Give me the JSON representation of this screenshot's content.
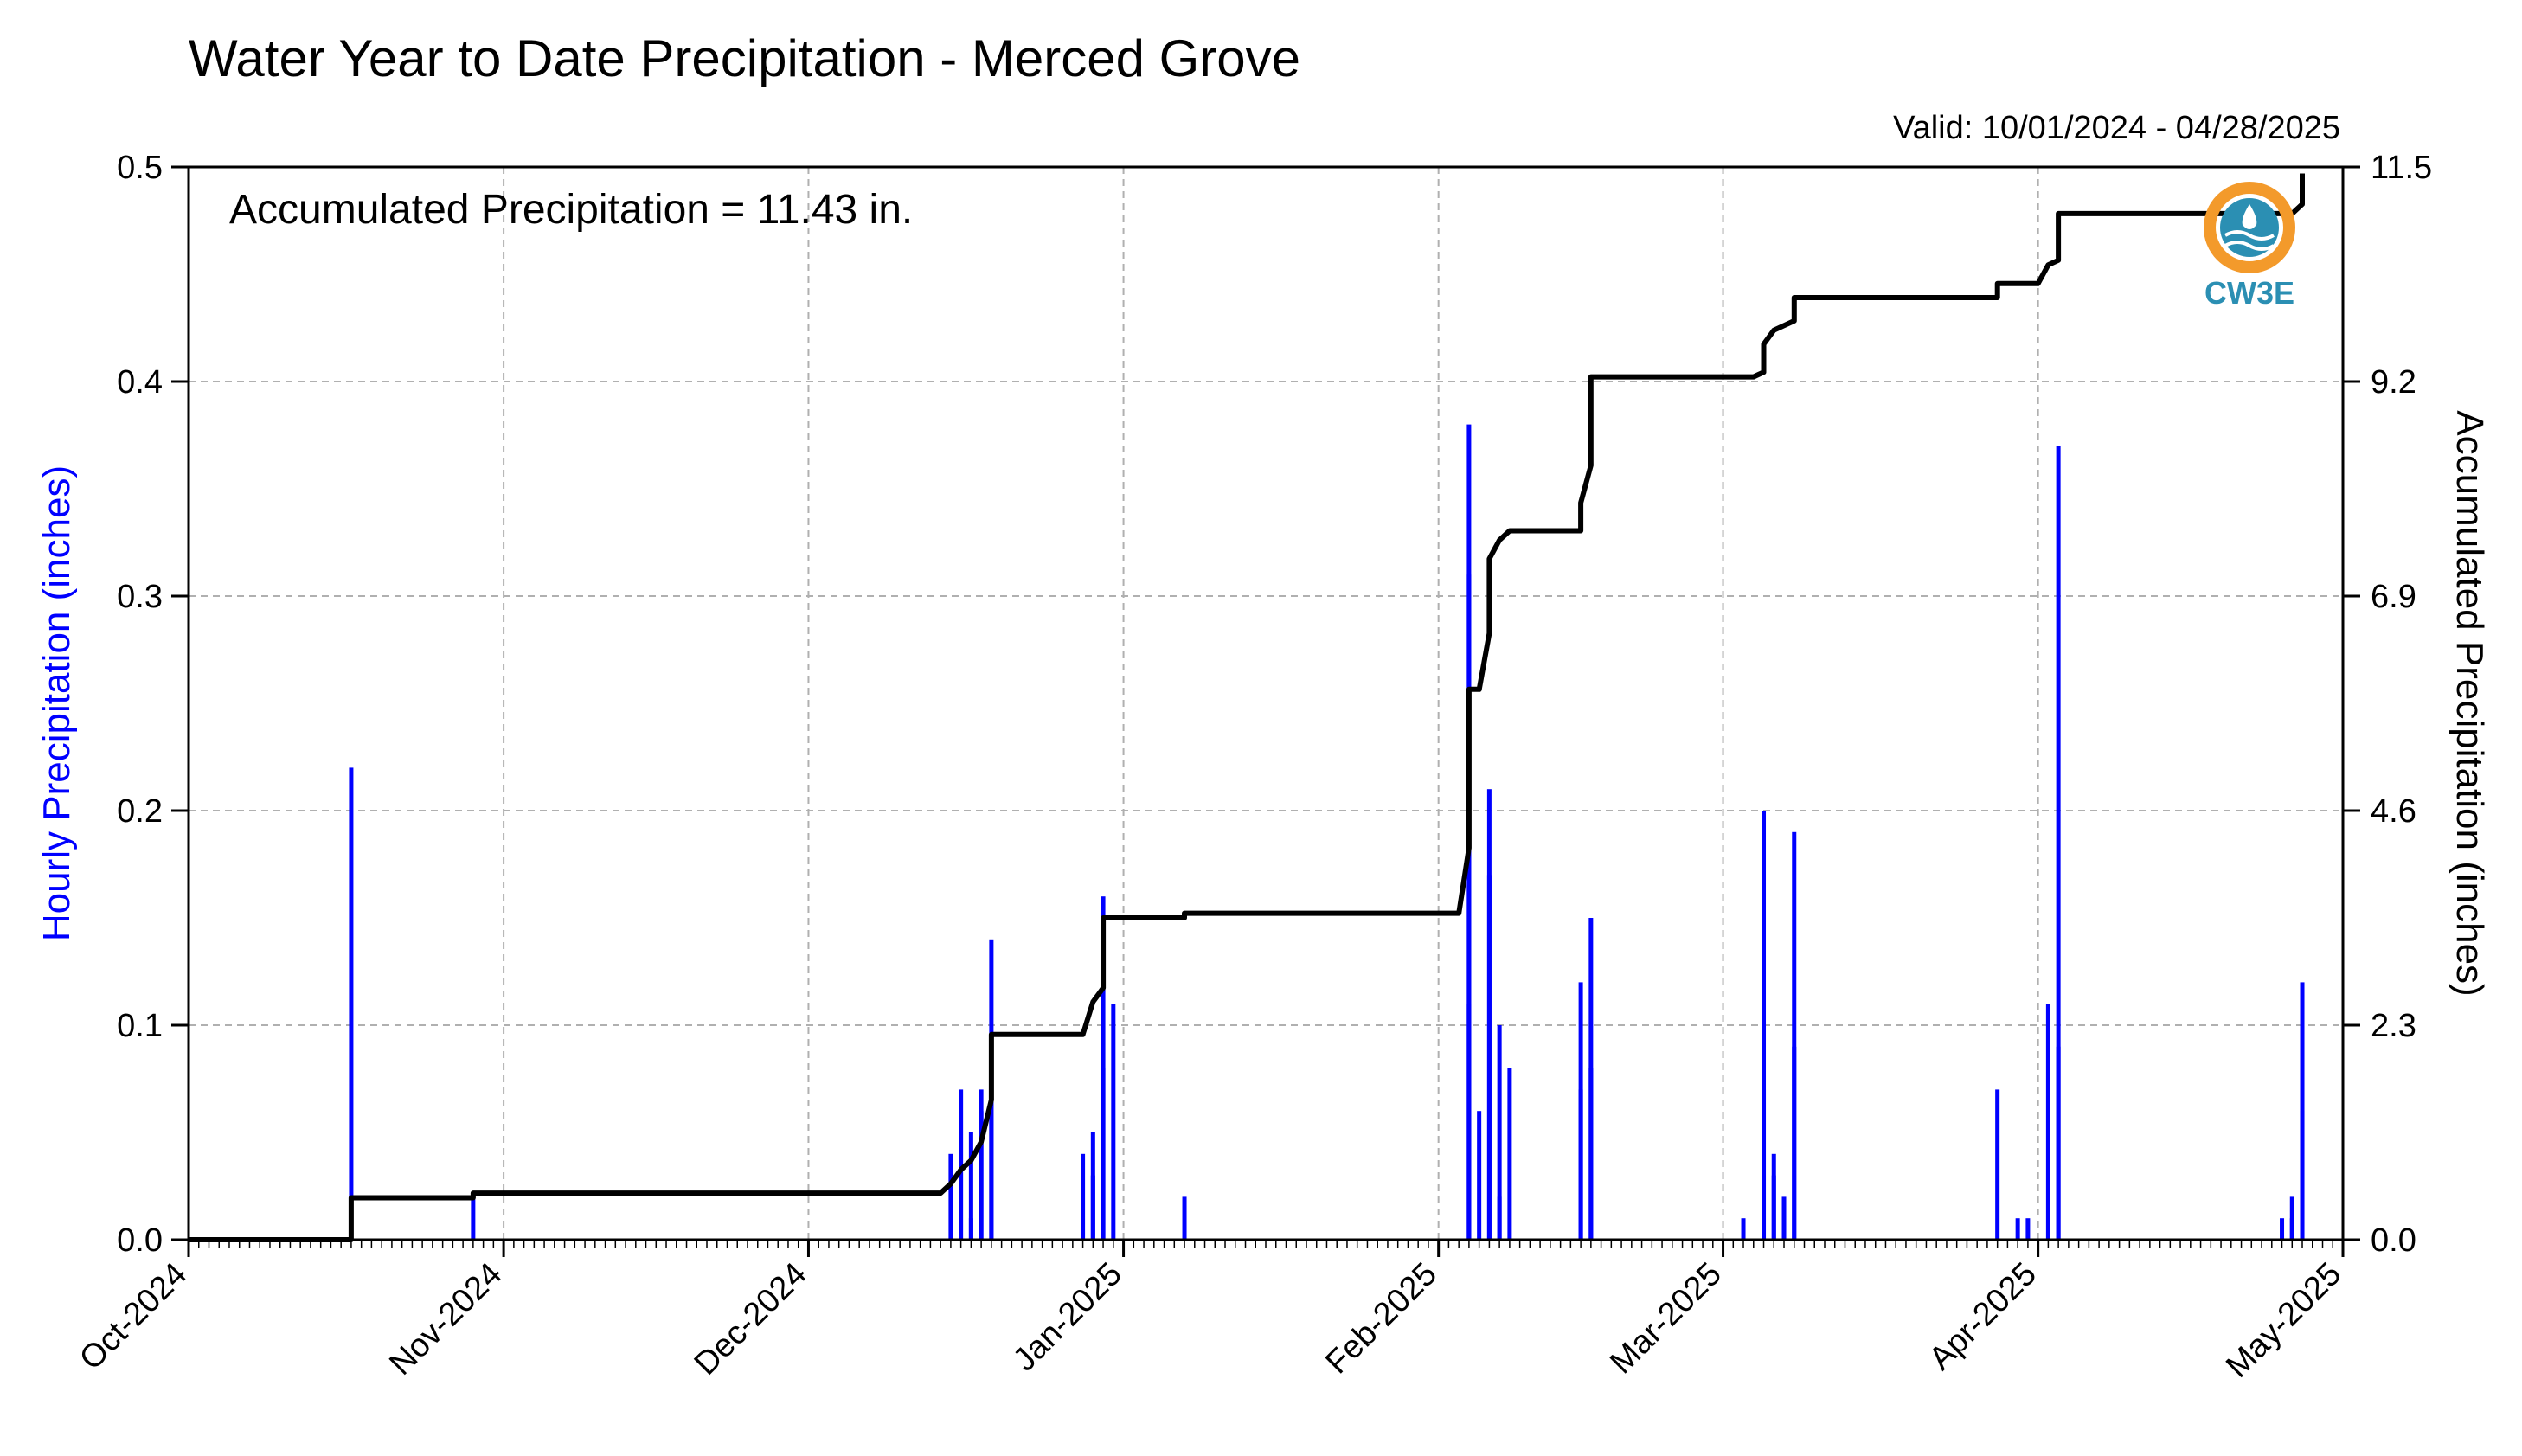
{
  "chart_data": {
    "type": "bar+line",
    "title": "Water Year to Date Precipitation - Merced Grove",
    "subtitle": "Valid: 10/01/2024 - 04/28/2025",
    "annotation": "Accumulated Precipitation = 11.43 in.",
    "ylabel_left": "Hourly Precipitation (inches)",
    "ylabel_right": "Accumulated Precipitation (inches)",
    "xlim": [
      "2024-10-01",
      "2025-05-01"
    ],
    "ylim_left": [
      0,
      0.5
    ],
    "ylim_right": [
      0,
      11.5
    ],
    "grid": true,
    "x_tick_labels": [
      "Oct-2024",
      "Nov-2024",
      "Dec-2024",
      "Jan-2025",
      "Feb-2025",
      "Mar-2025",
      "Apr-2025",
      "May-2025"
    ],
    "y_left_ticks": [
      "0.0",
      "0.1",
      "0.2",
      "0.3",
      "0.4",
      "0.5"
    ],
    "y_right_ticks": [
      "0.0",
      "2.3",
      "4.6",
      "6.9",
      "9.2",
      "11.5"
    ],
    "colors": {
      "hourly": "#0000ff",
      "accumulated": "#000000",
      "grid": "#b0b0b0"
    },
    "hourly_precipitation": {
      "name": "Hourly Precipitation",
      "points": [
        [
          "2024-10-17",
          0.22
        ],
        [
          "2024-10-29",
          0.02
        ],
        [
          "2024-12-15",
          0.04
        ],
        [
          "2024-12-16",
          0.07
        ],
        [
          "2024-12-17",
          0.01
        ],
        [
          "2024-12-17",
          0.05
        ],
        [
          "2024-12-18",
          0.07
        ],
        [
          "2024-12-18",
          0.06
        ],
        [
          "2024-12-19",
          0.14
        ],
        [
          "2024-12-19",
          0.08
        ],
        [
          "2024-12-28",
          0.04
        ],
        [
          "2024-12-29",
          0.05
        ],
        [
          "2024-12-29",
          0.03
        ],
        [
          "2024-12-30",
          0.08
        ],
        [
          "2024-12-30",
          0.16
        ],
        [
          "2024-12-31",
          0.11
        ],
        [
          "2025-01-07",
          0.02
        ],
        [
          "2025-02-04",
          0.11
        ],
        [
          "2025-02-04",
          0.38
        ],
        [
          "2025-02-04",
          0.31
        ],
        [
          "2025-02-05",
          0.06
        ],
        [
          "2025-02-06",
          0.17
        ],
        [
          "2025-02-06",
          0.21
        ],
        [
          "2025-02-07",
          0.1
        ],
        [
          "2025-02-07",
          0.02
        ],
        [
          "2025-02-08",
          0.08
        ],
        [
          "2025-02-15",
          0.12
        ],
        [
          "2025-02-15",
          0.07
        ],
        [
          "2025-02-16",
          0.15
        ],
        [
          "2025-02-16",
          0.08
        ],
        [
          "2025-03-03",
          0.01
        ],
        [
          "2025-03-05",
          0.2
        ],
        [
          "2025-03-05",
          0.07
        ],
        [
          "2025-03-06",
          0.04
        ],
        [
          "2025-03-06",
          0.03
        ],
        [
          "2025-03-07",
          0.02
        ],
        [
          "2025-03-08",
          0.19
        ],
        [
          "2025-03-08",
          0.09
        ],
        [
          "2025-03-28",
          0.07
        ],
        [
          "2025-03-30",
          0.01
        ],
        [
          "2025-03-31",
          0.01
        ],
        [
          "2025-04-02",
          0.11
        ],
        [
          "2025-04-03",
          0.37
        ],
        [
          "2025-04-03",
          0.09
        ],
        [
          "2025-04-25",
          0.01
        ],
        [
          "2025-04-26",
          0.02
        ],
        [
          "2025-04-26",
          0.01
        ],
        [
          "2025-04-27",
          0.12
        ],
        [
          "2025-04-27",
          0.06
        ]
      ]
    },
    "accumulated_precipitation": {
      "name": "Accumulated Precipitation",
      "points": [
        [
          "2024-10-01",
          0.0
        ],
        [
          "2024-10-17",
          0.0
        ],
        [
          "2024-10-17",
          0.45
        ],
        [
          "2024-10-29",
          0.45
        ],
        [
          "2024-10-29",
          0.5
        ],
        [
          "2024-12-14",
          0.5
        ],
        [
          "2024-12-15",
          0.6
        ],
        [
          "2024-12-16",
          0.75
        ],
        [
          "2024-12-17",
          0.85
        ],
        [
          "2024-12-18",
          1.05
        ],
        [
          "2024-12-19",
          1.5
        ],
        [
          "2024-12-19",
          2.2
        ],
        [
          "2024-12-28",
          2.2
        ],
        [
          "2024-12-29",
          2.55
        ],
        [
          "2024-12-30",
          2.7
        ],
        [
          "2024-12-30",
          3.45
        ],
        [
          "2025-01-07",
          3.45
        ],
        [
          "2025-01-07",
          3.5
        ],
        [
          "2025-02-03",
          3.5
        ],
        [
          "2025-02-04",
          4.2
        ],
        [
          "2025-02-04",
          5.9
        ],
        [
          "2025-02-05",
          5.9
        ],
        [
          "2025-02-06",
          6.5
        ],
        [
          "2025-02-06",
          7.3
        ],
        [
          "2025-02-07",
          7.5
        ],
        [
          "2025-02-08",
          7.6
        ],
        [
          "2025-02-15",
          7.6
        ],
        [
          "2025-02-15",
          7.9
        ],
        [
          "2025-02-16",
          8.3
        ],
        [
          "2025-02-16",
          9.25
        ],
        [
          "2025-03-04",
          9.25
        ],
        [
          "2025-03-05",
          9.3
        ],
        [
          "2025-03-05",
          9.6
        ],
        [
          "2025-03-06",
          9.75
        ],
        [
          "2025-03-07",
          9.8
        ],
        [
          "2025-03-08",
          9.85
        ],
        [
          "2025-03-08",
          10.1
        ],
        [
          "2025-03-28",
          10.1
        ],
        [
          "2025-03-28",
          10.25
        ],
        [
          "2025-04-01",
          10.25
        ],
        [
          "2025-04-02",
          10.45
        ],
        [
          "2025-04-03",
          10.5
        ],
        [
          "2025-04-03",
          11.0
        ],
        [
          "2025-04-26",
          11.0
        ],
        [
          "2025-04-27",
          11.1
        ],
        [
          "2025-04-27",
          11.43
        ]
      ]
    }
  },
  "logo": {
    "text": "CW3E",
    "icon": "cw3e-logo-icon"
  }
}
